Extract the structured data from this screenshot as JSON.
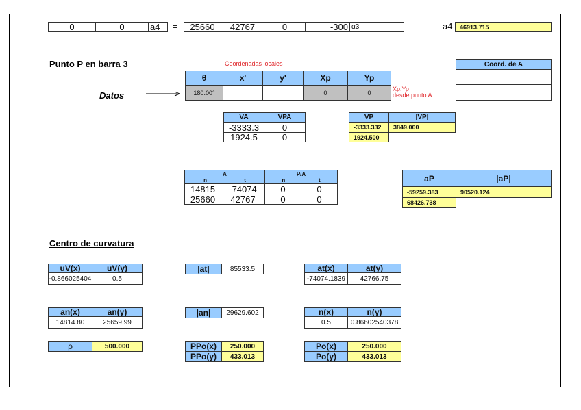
{
  "top_row": {
    "c1": "0",
    "c2": "0",
    "c3": "a4",
    "eq": "=",
    "c4": "25660",
    "c5": "42767",
    "c6": "0",
    "c7": "-300",
    "c8": "α3",
    "a4_label": "a4",
    "a4_value": "46913.715"
  },
  "punto": {
    "title": "Punto P en barra 3",
    "local_label": "Coordenadas locales",
    "headers": [
      "θ",
      "x'",
      "y'",
      "Xp",
      "Yp"
    ],
    "datos_label": "Datos",
    "values": [
      "180.00°",
      "",
      "",
      "0",
      "0"
    ],
    "note1": "Xp,Yp",
    "note2": "desde punto A",
    "coordA_header": "Coord. de A"
  },
  "va": {
    "headers": [
      "VA",
      "VPA"
    ],
    "rows": [
      [
        "-3333.3",
        "0"
      ],
      [
        "1924.5",
        "0"
      ]
    ]
  },
  "vp": {
    "headers": [
      "VP",
      "|VP|"
    ],
    "rows": [
      [
        "-3333.332",
        "3849.000"
      ],
      [
        "1924.500",
        ""
      ]
    ]
  },
  "accel": {
    "group_a": "A",
    "group_pa": "P/A",
    "sub": [
      "n",
      "t",
      "n",
      "t"
    ],
    "rows": [
      [
        "14815",
        "-74074",
        "0",
        "0"
      ],
      [
        "25660",
        "42767",
        "0",
        "0"
      ]
    ]
  },
  "ap": {
    "headers": [
      "aP",
      "|aP|"
    ],
    "rows": [
      [
        "-59259.383",
        "90520.124"
      ],
      [
        "68426.738",
        ""
      ]
    ]
  },
  "centro": {
    "title": "Centro de curvatura",
    "uv": {
      "headers": [
        "uV(x)",
        "uV(y)"
      ],
      "values": [
        "-0.866025404",
        "0.5"
      ]
    },
    "at_mag": {
      "label": "|at|",
      "value": "85533.5"
    },
    "at": {
      "headers": [
        "at(x)",
        "at(y)"
      ],
      "values": [
        "-74074.1839",
        "42766.75"
      ]
    },
    "an": {
      "headers": [
        "an(x)",
        "an(y)"
      ],
      "values": [
        "14814.80",
        "25659.99"
      ]
    },
    "an_mag": {
      "label": "|an|",
      "value": "29629.602"
    },
    "n": {
      "headers": [
        "n(x)",
        "n(y)"
      ],
      "values": [
        "0.5",
        "0.86602540378"
      ]
    },
    "rho": {
      "label": "ρ",
      "value": "500.000"
    },
    "ppo": {
      "labels": [
        "PPo(x)",
        "PPo(y)"
      ],
      "values": [
        "250.000",
        "433.013"
      ]
    },
    "po": {
      "labels": [
        "Po(x)",
        "Po(y)"
      ],
      "values": [
        "250.000",
        "433.013"
      ]
    }
  },
  "colors": {
    "header": "#99ccff",
    "highlight": "#ffff99",
    "input": "#c0c0c0",
    "note": "#e0282c"
  }
}
